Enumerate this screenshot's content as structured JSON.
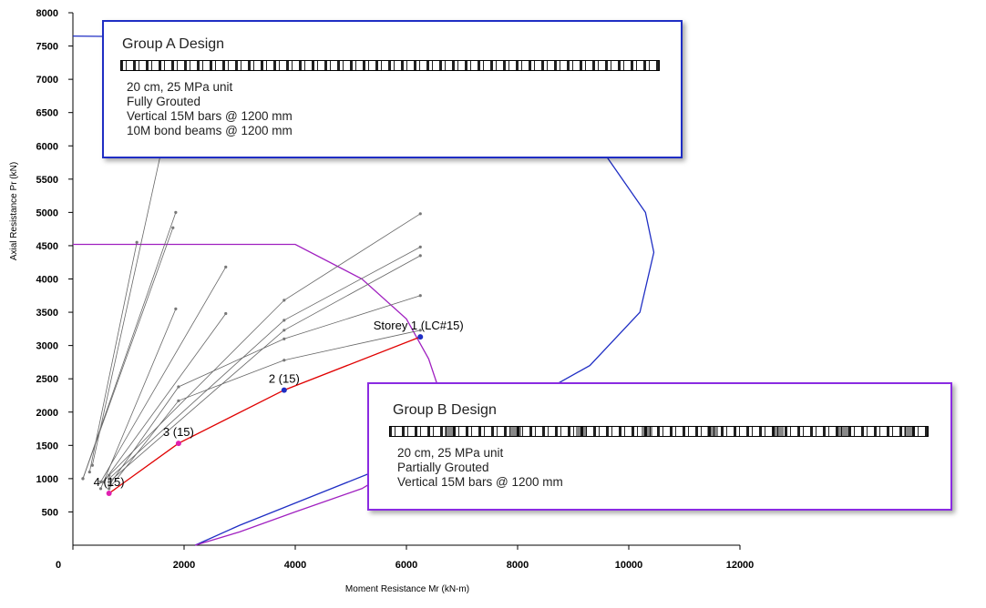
{
  "chart_data": {
    "type": "scatter",
    "title": "",
    "xlabel": "Moment Resistance Mr (kN-m)",
    "ylabel": "Axial Resistance Pr (kN)",
    "xlim": [
      0,
      12000
    ],
    "ylim": [
      0,
      8000
    ],
    "x_ticks": [
      0,
      2000,
      4000,
      6000,
      8000,
      10000,
      12000
    ],
    "y_ticks": [
      500,
      1000,
      1500,
      2000,
      2500,
      3000,
      3500,
      4000,
      4500,
      5000,
      5500,
      6000,
      6500,
      7000,
      7500,
      8000
    ],
    "grid": false,
    "series": [
      {
        "name": "",
        "color": "#1f2ec4",
        "x": [
          0,
          5500,
          7300,
          9300,
          10300,
          10450,
          10200,
          9300,
          7800,
          6300,
          4500,
          3000,
          2200
        ],
        "y": [
          7650,
          7600,
          7200,
          6200,
          5000,
          4400,
          3500,
          2700,
          2000,
          1400,
          800,
          300,
          0
        ]
      },
      {
        "name": "",
        "color": "#a020c0",
        "x": [
          0,
          4000,
          5200,
          6000,
          6400,
          6600,
          6500,
          6100,
          5200,
          4000,
          3000,
          2200
        ],
        "y": [
          4520,
          4520,
          4000,
          3400,
          2800,
          2300,
          1800,
          1300,
          850,
          500,
          200,
          0
        ]
      },
      {
        "name": "",
        "color": "#e00000",
        "x": [
          650,
          1900,
          3800,
          6250
        ],
        "y": [
          780,
          1530,
          2330,
          3130
        ]
      },
      {
        "name": "",
        "color": "#666666",
        "x": [
          180,
          1850
        ],
        "y": [
          1000,
          5000
        ]
      },
      {
        "name": "",
        "color": "#666666",
        "x": [
          180,
          1800
        ],
        "y": [
          1000,
          4770
        ]
      },
      {
        "name": "",
        "color": "#666666",
        "x": [
          300,
          1150
        ],
        "y": [
          1100,
          4550
        ]
      },
      {
        "name": "",
        "color": "#666666",
        "x": [
          350,
          1900
        ],
        "y": [
          1200,
          7100
        ]
      },
      {
        "name": "",
        "color": "#666666",
        "x": [
          500,
          2750
        ],
        "y": [
          950,
          4180
        ]
      },
      {
        "name": "",
        "color": "#666666",
        "x": [
          500,
          1850
        ],
        "y": [
          850,
          3550
        ]
      },
      {
        "name": "",
        "color": "#666666",
        "x": [
          550,
          2750
        ],
        "y": [
          950,
          3480
        ]
      },
      {
        "name": "",
        "color": "#666666",
        "x": [
          650,
          3800,
          6250
        ],
        "y": [
          1050,
          3680,
          4980
        ]
      },
      {
        "name": "",
        "color": "#666666",
        "x": [
          650,
          3800,
          6250
        ],
        "y": [
          1000,
          3380,
          4480
        ]
      },
      {
        "name": "",
        "color": "#666666",
        "x": [
          650,
          3800,
          6250
        ],
        "y": [
          950,
          3230,
          4350
        ]
      },
      {
        "name": "",
        "color": "#666666",
        "x": [
          650,
          1900,
          3800,
          6250
        ],
        "y": [
          900,
          2380,
          3100,
          3750
        ]
      },
      {
        "name": "",
        "color": "#666666",
        "x": [
          650,
          1900,
          3800,
          6250
        ],
        "y": [
          850,
          2170,
          2780,
          3230
        ]
      }
    ],
    "points": [
      {
        "label": "4 (15)",
        "x": 650,
        "y": 780,
        "color": "#e020b0"
      },
      {
        "label": "3 (15)",
        "x": 1900,
        "y": 1530,
        "color": "#e020b0"
      },
      {
        "label": "2 (15)",
        "x": 3800,
        "y": 2330,
        "color": "#1f2ec4"
      },
      {
        "label": "Storey 1 (LC#15)",
        "x": 6250,
        "y": 3130,
        "color": "#1f2ec4"
      }
    ],
    "annotations": [
      {
        "title": "Group A Design",
        "lines": [
          "20 cm, 25 MPa unit",
          "Fully Grouted",
          "Vertical 15M bars @ 1200 mm",
          "10M bond beams @ 1200 mm"
        ]
      },
      {
        "title": "Group B Design",
        "lines": [
          "20 cm, 25 MPa unit",
          "Partially Grouted",
          "Vertical 15M bars @ 1200 mm"
        ]
      }
    ]
  }
}
